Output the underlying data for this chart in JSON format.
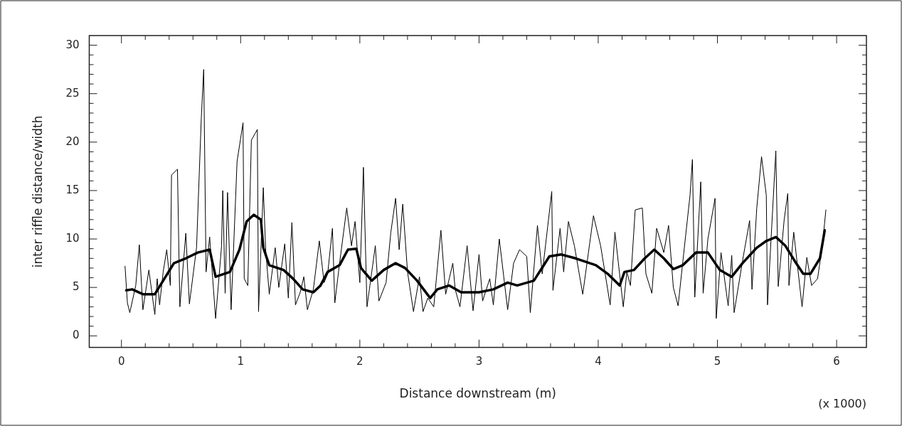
{
  "chart_data": {
    "type": "line",
    "xlabel": "Distance downstream (m)",
    "ylabel": "inter riffle distance/width",
    "annotations": [
      "(x 1000)"
    ],
    "xlim": [
      -0.27,
      6.25
    ],
    "ylim": [
      -1.2,
      31
    ],
    "xticks": [
      0,
      {
        "value": 0.2,
        "label": null
      },
      {
        "value": 0.4,
        "label": null
      },
      {
        "value": 0.6,
        "label": null
      },
      {
        "value": 0.8,
        "label": null
      },
      1,
      {
        "value": 1.2,
        "label": null
      },
      {
        "value": 1.4,
        "label": null
      },
      {
        "value": 1.6,
        "label": null
      },
      {
        "value": 1.8,
        "label": null
      },
      2,
      {
        "value": 2.2,
        "label": null
      },
      {
        "value": 2.4,
        "label": null
      },
      {
        "value": 2.6,
        "label": null
      },
      {
        "value": 2.8,
        "label": null
      },
      3,
      {
        "value": 3.2,
        "label": null
      },
      {
        "value": 3.4,
        "label": null
      },
      {
        "value": 3.6,
        "label": null
      },
      {
        "value": 3.8,
        "label": null
      },
      4,
      {
        "value": 4.2,
        "label": null
      },
      {
        "value": 4.4,
        "label": null
      },
      {
        "value": 4.6,
        "label": null
      },
      {
        "value": 4.8,
        "label": null
      },
      5,
      {
        "value": 5.2,
        "label": null
      },
      {
        "value": 5.4,
        "label": null
      },
      {
        "value": 5.6,
        "label": null
      },
      {
        "value": 5.8,
        "label": null
      },
      6
    ],
    "yticks": [
      0,
      {
        "value": 1,
        "label": null
      },
      {
        "value": 2,
        "label": null
      },
      {
        "value": 3,
        "label": null
      },
      {
        "value": 4,
        "label": null
      },
      5,
      {
        "value": 6,
        "label": null
      },
      {
        "value": 7,
        "label": null
      },
      {
        "value": 8,
        "label": null
      },
      {
        "value": 9,
        "label": null
      },
      10,
      {
        "value": 11,
        "label": null
      },
      {
        "value": 12,
        "label": null
      },
      {
        "value": 13,
        "label": null
      },
      {
        "value": 14,
        "label": null
      },
      15,
      {
        "value": 16,
        "label": null
      },
      {
        "value": 17,
        "label": null
      },
      {
        "value": 18,
        "label": null
      },
      {
        "value": 19,
        "label": null
      },
      20,
      {
        "value": 21,
        "label": null
      },
      {
        "value": 22,
        "label": null
      },
      {
        "value": 23,
        "label": null
      },
      {
        "value": 24,
        "label": null
      },
      25,
      {
        "value": 26,
        "label": null
      },
      {
        "value": 27,
        "label": null
      },
      {
        "value": 28,
        "label": null
      },
      {
        "value": 29,
        "label": null
      },
      30
    ],
    "grid": false,
    "legend": false,
    "marker": "none",
    "line_style": "solid",
    "series": [
      {
        "color": "#000000",
        "x": [
          0.03,
          0.05,
          0.07,
          0.12,
          0.15,
          0.18,
          0.23,
          0.28,
          0.3,
          0.32,
          0.35,
          0.38,
          0.41,
          0.42,
          0.47,
          0.49,
          0.54,
          0.57,
          0.63,
          0.67,
          0.69,
          0.71,
          0.74,
          0.79,
          0.84,
          0.85,
          0.87,
          0.89,
          0.92,
          0.97,
          1.02,
          1.03,
          1.06,
          1.09,
          1.14,
          1.15,
          1.19,
          1.21,
          1.24,
          1.29,
          1.32,
          1.37,
          1.4,
          1.43,
          1.46,
          1.5,
          1.53,
          1.56,
          1.61,
          1.66,
          1.7,
          1.73,
          1.77,
          1.79,
          1.83,
          1.89,
          1.93,
          1.96,
          2.0,
          2.03,
          2.06,
          2.1,
          2.13,
          2.16,
          2.22,
          2.26,
          2.3,
          2.33,
          2.36,
          2.4,
          2.45,
          2.5,
          2.53,
          2.57,
          2.62,
          2.68,
          2.72,
          2.78,
          2.8,
          2.84,
          2.9,
          2.95,
          3.0,
          3.03,
          3.09,
          3.12,
          3.17,
          3.24,
          3.29,
          3.34,
          3.4,
          3.43,
          3.49,
          3.53,
          3.61,
          3.62,
          3.68,
          3.71,
          3.75,
          3.8,
          3.87,
          3.96,
          4.02,
          4.1,
          4.14,
          4.21,
          4.24,
          4.27,
          4.31,
          4.37,
          4.4,
          4.45,
          4.49,
          4.55,
          4.59,
          4.63,
          4.67,
          4.71,
          4.77,
          4.79,
          4.81,
          4.86,
          4.88,
          4.92,
          4.98,
          4.99,
          5.03,
          5.09,
          5.12,
          5.14,
          5.21,
          5.27,
          5.29,
          5.33,
          5.37,
          5.41,
          5.42,
          5.49,
          5.51,
          5.56,
          5.59,
          5.6,
          5.64,
          5.71,
          5.75,
          5.79,
          5.84,
          5.88,
          5.91
        ],
        "values": [
          7.2,
          3.4,
          2.4,
          5.2,
          9.4,
          2.7,
          6.8,
          2.2,
          5.9,
          3.2,
          6.6,
          8.9,
          5.2,
          16.6,
          17.2,
          3.0,
          10.6,
          3.3,
          9.1,
          22.5,
          27.5,
          6.6,
          10.2,
          1.8,
          9.3,
          15.0,
          4.4,
          14.8,
          2.7,
          18.0,
          22.0,
          5.9,
          5.2,
          20.2,
          21.3,
          2.5,
          15.3,
          8.9,
          4.3,
          9.1,
          5.0,
          9.5,
          3.9,
          11.7,
          3.2,
          4.5,
          6.1,
          2.7,
          4.8,
          9.8,
          5.5,
          6.4,
          11.1,
          3.4,
          7.5,
          13.2,
          9.3,
          11.8,
          5.5,
          17.4,
          3.0,
          6.6,
          9.3,
          3.6,
          5.5,
          10.7,
          14.2,
          8.9,
          13.6,
          6.6,
          2.5,
          6.1,
          2.5,
          3.9,
          3.0,
          10.9,
          4.3,
          7.5,
          4.8,
          3.0,
          9.3,
          2.6,
          8.4,
          3.6,
          5.9,
          3.2,
          10.0,
          2.7,
          7.5,
          8.9,
          8.2,
          2.4,
          11.4,
          6.4,
          14.9,
          4.7,
          11.1,
          6.6,
          11.8,
          9.3,
          4.3,
          12.4,
          9.3,
          3.2,
          10.7,
          3.0,
          6.6,
          5.2,
          13.0,
          13.2,
          6.4,
          4.4,
          11.1,
          8.6,
          11.4,
          5.0,
          3.1,
          7.7,
          14.5,
          18.2,
          4.0,
          15.9,
          4.4,
          10.0,
          14.2,
          1.8,
          8.6,
          3.1,
          8.3,
          2.4,
          7.7,
          11.9,
          4.8,
          13.2,
          18.5,
          14.5,
          3.2,
          19.1,
          5.1,
          12.0,
          14.7,
          5.2,
          10.7,
          3.0,
          8.1,
          5.2,
          5.9,
          9.3,
          13.0
        ]
      },
      {
        "color": "#000000",
        "x": [
          0.04,
          0.09,
          0.18,
          0.28,
          0.36,
          0.44,
          0.54,
          0.64,
          0.74,
          0.79,
          0.91,
          0.99,
          1.05,
          1.11,
          1.17,
          1.19,
          1.24,
          1.36,
          1.44,
          1.52,
          1.61,
          1.67,
          1.73,
          1.83,
          1.9,
          1.97,
          2.01,
          2.1,
          2.2,
          2.3,
          2.38,
          2.48,
          2.59,
          2.65,
          2.75,
          2.85,
          3.0,
          3.12,
          3.24,
          3.32,
          3.46,
          3.59,
          3.69,
          3.81,
          3.98,
          4.08,
          4.18,
          4.22,
          4.3,
          4.39,
          4.47,
          4.55,
          4.63,
          4.71,
          4.82,
          4.92,
          5.02,
          5.12,
          5.21,
          5.33,
          5.41,
          5.49,
          5.57,
          5.66,
          5.72,
          5.78,
          5.86,
          5.9
        ],
        "values": [
          4.7,
          4.8,
          4.3,
          4.3,
          5.9,
          7.5,
          8.0,
          8.6,
          8.9,
          6.1,
          6.6,
          8.9,
          11.8,
          12.5,
          12.0,
          9.1,
          7.3,
          6.8,
          5.9,
          4.8,
          4.5,
          5.2,
          6.6,
          7.3,
          8.9,
          9.0,
          7.0,
          5.7,
          6.8,
          7.5,
          7.0,
          5.7,
          3.9,
          4.8,
          5.2,
          4.5,
          4.5,
          4.8,
          5.5,
          5.2,
          5.7,
          8.2,
          8.4,
          8.0,
          7.3,
          6.4,
          5.2,
          6.6,
          6.8,
          8.0,
          8.9,
          8.0,
          6.9,
          7.3,
          8.6,
          8.6,
          6.8,
          6.1,
          7.5,
          9.1,
          9.8,
          10.2,
          9.3,
          7.5,
          6.4,
          6.4,
          8.0,
          10.9
        ]
      }
    ]
  }
}
